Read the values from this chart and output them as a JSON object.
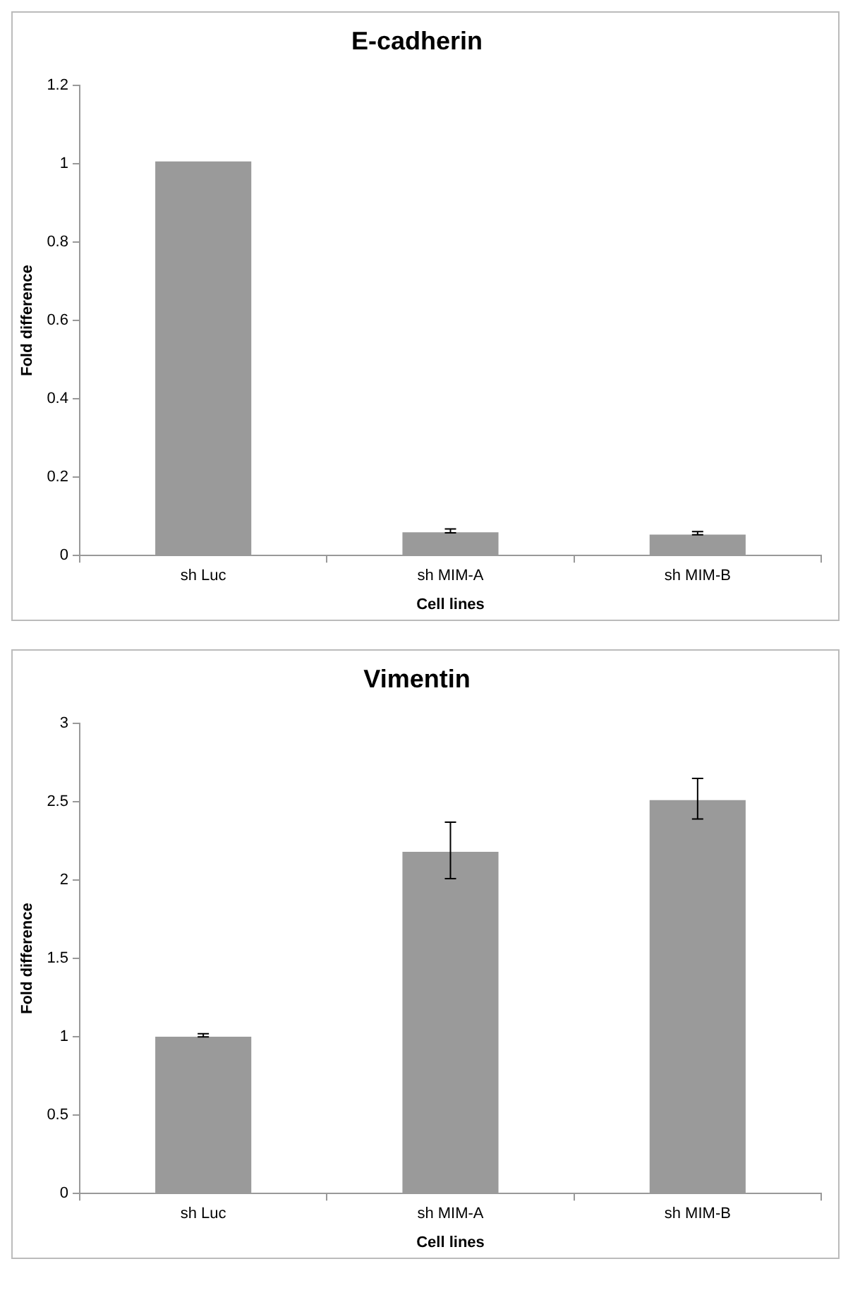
{
  "chart_data": [
    {
      "type": "bar",
      "title": "E-cadherin",
      "xlabel": "Cell lines",
      "ylabel": "Fold difference",
      "categories": [
        "sh Luc",
        "sh MIM-A",
        "sh MIM-B"
      ],
      "values": [
        1.01,
        0.063,
        0.057
      ],
      "errors": [
        null,
        0.005,
        0.004
      ],
      "color": "#9a9a9a",
      "ylim": [
        0,
        1.2
      ],
      "yticks": [
        0,
        0.2,
        0.4,
        0.6,
        0.8,
        1,
        1.2
      ],
      "grid": false,
      "legend": false
    },
    {
      "type": "bar",
      "title": "Vimentin",
      "xlabel": "Cell lines",
      "ylabel": "Fold difference",
      "categories": [
        "sh Luc",
        "sh MIM-A",
        "sh MIM-B"
      ],
      "values": [
        1.01,
        2.19,
        2.52
      ],
      "errors": [
        0.01,
        0.18,
        0.13
      ],
      "color": "#9a9a9a",
      "ylim": [
        0,
        3
      ],
      "yticks": [
        0,
        0.5,
        1,
        1.5,
        2,
        2.5,
        3
      ],
      "grid": false,
      "legend": false
    }
  ]
}
